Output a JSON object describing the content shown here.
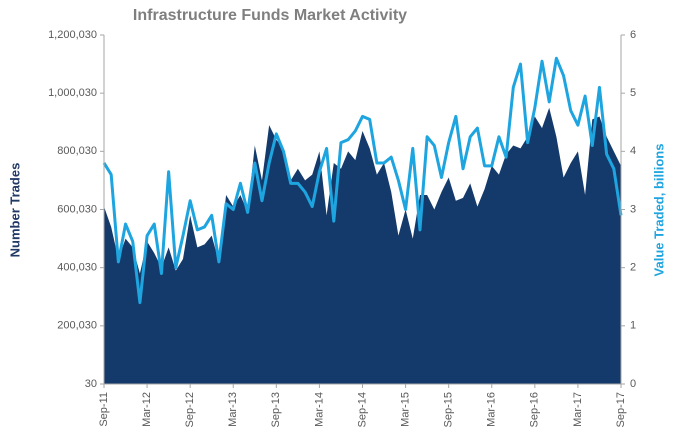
{
  "chart_data": {
    "type": "combo",
    "title": "Infrastructure Funds Market Activity",
    "y_label": "Number Trades",
    "y2_label": "Value Traded, billions",
    "categories": [
      "Sep-11",
      null,
      null,
      null,
      null,
      null,
      "Mar-12",
      null,
      null,
      null,
      null,
      null,
      "Sep-12",
      null,
      null,
      null,
      null,
      null,
      "Mar-13",
      null,
      null,
      null,
      null,
      null,
      "Sep-13",
      null,
      null,
      null,
      null,
      null,
      "Mar-14",
      null,
      null,
      null,
      null,
      null,
      "Sep-14",
      null,
      null,
      null,
      null,
      null,
      "Mar-15",
      null,
      null,
      null,
      null,
      null,
      "Sep-15",
      null,
      null,
      null,
      null,
      null,
      "Mar-16",
      null,
      null,
      null,
      null,
      null,
      "Sep-16",
      null,
      null,
      null,
      null,
      null,
      "Mar-17",
      null,
      null,
      null,
      null,
      null,
      "Sep-17"
    ],
    "series": [
      {
        "name": "Number Trades",
        "type": "area",
        "axis": "y",
        "color": "#143a6b",
        "values": [
          610000,
          540000,
          430000,
          500000,
          470000,
          380000,
          490000,
          450000,
          400000,
          470000,
          390000,
          430000,
          580000,
          470000,
          480000,
          510000,
          420000,
          650000,
          610000,
          650000,
          590000,
          820000,
          700000,
          890000,
          840000,
          810000,
          700000,
          740000,
          700000,
          720000,
          800000,
          580000,
          760000,
          740000,
          800000,
          770000,
          870000,
          810000,
          720000,
          760000,
          660000,
          510000,
          600000,
          500000,
          650000,
          650000,
          600000,
          660000,
          710000,
          630000,
          640000,
          690000,
          610000,
          670000,
          750000,
          720000,
          790000,
          820000,
          810000,
          850000,
          920000,
          880000,
          950000,
          850000,
          710000,
          760000,
          800000,
          650000,
          910000,
          920000,
          850000,
          800000,
          750000
        ]
      },
      {
        "name": "Value Traded, billions",
        "type": "line",
        "axis": "y2",
        "color": "#1ea5e0",
        "values": [
          3.8,
          3.6,
          2.1,
          2.75,
          2.45,
          1.4,
          2.55,
          2.75,
          1.9,
          3.65,
          2.0,
          2.55,
          3.15,
          2.65,
          2.7,
          2.9,
          2.1,
          3.1,
          3.0,
          3.45,
          2.95,
          3.8,
          3.15,
          3.8,
          4.3,
          4.0,
          3.45,
          3.45,
          3.3,
          3.05,
          3.65,
          4.05,
          2.8,
          4.15,
          4.2,
          4.35,
          4.6,
          4.55,
          3.8,
          3.8,
          3.9,
          3.5,
          3.0,
          4.05,
          2.65,
          4.25,
          4.1,
          3.55,
          4.15,
          4.6,
          3.7,
          4.25,
          4.4,
          3.75,
          3.75,
          4.25,
          3.9,
          5.1,
          5.5,
          4.15,
          4.75,
          5.55,
          4.85,
          5.6,
          5.3,
          4.7,
          4.45,
          4.95,
          4.1,
          5.1,
          3.95,
          3.7,
          2.9
        ]
      }
    ],
    "ylim": [
      30,
      1200030
    ],
    "yticks": [
      {
        "value": 30,
        "label": "30"
      },
      {
        "value": 200030,
        "label": "200,030"
      },
      {
        "value": 400030,
        "label": "400,030"
      },
      {
        "value": 600030,
        "label": "600,030"
      },
      {
        "value": 800030,
        "label": "800,030"
      },
      {
        "value": 1000030,
        "label": "1,000,030"
      },
      {
        "value": 1200030,
        "label": "1,200,030"
      }
    ],
    "y2lim": [
      0,
      6
    ],
    "y2ticks": [
      0,
      1,
      2,
      3,
      4,
      5,
      6
    ],
    "grid": false
  }
}
